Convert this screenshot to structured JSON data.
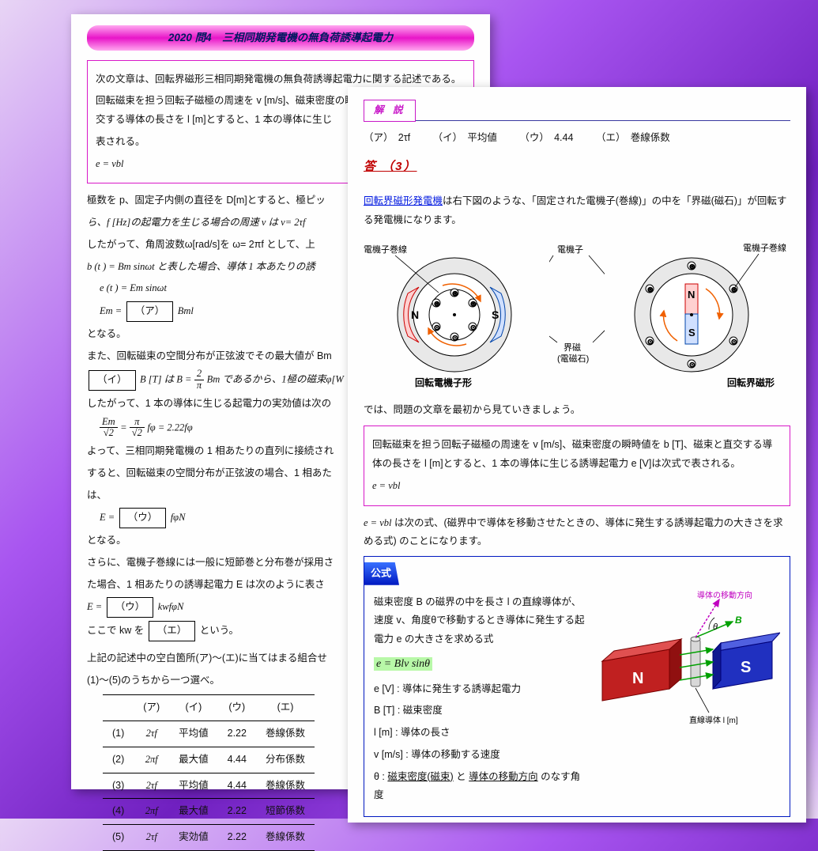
{
  "title": "2020 問4　三相同期発電機の無負荷誘導起電力",
  "p1": {
    "intro1": "次の文章は、回転界磁形三相同期発電機の無負荷誘導起電力に関する記述である。",
    "intro2": "回転磁束を担う回転子磁極の周速を v [m/s]、磁束密度の瞬時値を b [T]、磁束と直交する導体の長さを l [m]とすると、1 本の導体に生じ",
    "intro3": "表される。",
    "eq1": "e = vbl",
    "para2a": "極数を p、固定子内側の直径を D[m]とすると、極ピッ",
    "para2b": "ら、f [Hz]の起電力を生じる場合の周速 v は v= 2τf",
    "para2c": "したがって、角周波数ω[rad/s]を ω= 2πf として、上",
    "para2d": "b (t ) = Bm sinωt と表した場合、導体 1 本あたりの誘",
    "eq_et": "e (t ) = Em sinωt",
    "eq_Em_pre": "Em =",
    "eq_Em_blank": "（ア）",
    "eq_Em_post": "Bml",
    "tonaru": "となる。",
    "para3a": "また、回転磁束の空間分布が正弦波でその最大値が Bm",
    "blank_i": "（イ）",
    "para3b": "B [T] は B =",
    "frac_2pi_n": "2",
    "frac_2pi_d": "π",
    "para3c": "Bm であるから、1極の磁束φ[W",
    "para4": "したがって、1 本の導体に生じる起電力の実効値は次の",
    "frac_Em_n": "Em",
    "frac_Em_d": "√2",
    "frac_eq": " = ",
    "frac_pi_n": "π",
    "frac_pi_d": "√2",
    "para4b": "fφ = 2.22fφ",
    "para5a": "よって、三相同期発電機の 1 相あたりの直列に接続され",
    "para5b": "すると、回転磁束の空間分布が正弦波の場合、1 相あた",
    "para5c": "は、",
    "eq_E_pre": "E =",
    "eq_E_blank": "（ウ）",
    "eq_E_post": "fφN",
    "para6a": "さらに、電機子巻線には一般に短節巻と分布巻が採用さ",
    "para6b": "た場合、1 相あたりの誘導起電力 E は次のように表さ",
    "eq_E2_pre": "E =",
    "eq_E2_blank": "（ウ）",
    "eq_E2_post": "kwfφN",
    "para7a": "ここで kw を",
    "blank_e": "（エ）",
    "para7b": "という。",
    "para8": "上記の記述中の空白箇所(ア)～(エ)に当てはまる組合せ",
    "para9": "(1)～(5)のうちから一つ選べ。",
    "th_a": "(ア)",
    "th_i": "(イ)",
    "th_u": "(ウ)",
    "th_e": "(エ)",
    "rows": [
      {
        "n": "(1)",
        "a": "2τf",
        "i": "平均値",
        "u": "2.22",
        "e": "巻線係数"
      },
      {
        "n": "(2)",
        "a": "2πf",
        "i": "最大値",
        "u": "4.44",
        "e": "分布係数"
      },
      {
        "n": "(3)",
        "a": "2τf",
        "i": "平均値",
        "u": "4.44",
        "e": "巻線係数"
      },
      {
        "n": "(4)",
        "a": "2πf",
        "i": "最大値",
        "u": "2.22",
        "e": "短節係数"
      },
      {
        "n": "(5)",
        "a": "2τf",
        "i": "実効値",
        "u": "2.22",
        "e": "巻線係数"
      }
    ]
  },
  "p2": {
    "kaisetsu": "解 説",
    "ans_line_a": "（ア）　2τf",
    "ans_line_i": "（イ）　平均値",
    "ans_line_u": "（ウ）　4.44",
    "ans_line_e": "（エ）　巻線係数",
    "answer": "答 （3）",
    "link1": "回転界磁形発電機",
    "para1a": "は右下図のような、「固定された電機子(巻線)」の中を「界磁(磁石)」が回転する発電機になります。",
    "dlabels": {
      "denkishi_maki": "電機子巻線",
      "denkishi": "電機子",
      "kaiji": "界磁",
      "kaiji2": "(電磁石)",
      "red": "回転電機子形",
      "blue": "回転界磁形",
      "N": "N",
      "S": "S"
    },
    "para2": "では、問題の文章を最初から見ていきましょう。",
    "box1_l1": "回転磁束を担う回転子磁極の周速を v [m/s]、磁束密度の瞬時値を b [T]、磁束と直交する導体の長さを l [m]とすると、1 本の導体に生じる誘導起電力 e [V]は次式で表される。",
    "box1_l2": "e = vbl",
    "para3_a": "e = vbl",
    "para3_b": "は次の式、(磁界中で導体を移動させたときの、導体に発生する誘導起電力の大きさを求める式) のことになります。",
    "formula_hdr": "公式",
    "fml_l1": "磁束密度 B の磁界の中を長さ l の直線導体が、速度 v、角度θで移動するとき導体に発生する起電力 e の大きさを求める式",
    "fml_eq": "e = Blv sinθ",
    "fml_e": "e [V] : 導体に発生する誘導起電力",
    "fml_B": "B [T] : 磁束密度",
    "fml_l": "l [m] : 導体の長さ",
    "fml_v": "v [m/s] : 導体の移動する速度",
    "fml_th_a": "θ : ",
    "fml_th_b": "磁束密度(磁束)",
    "fml_th_c": " と ",
    "fml_th_d": "導体の移動方向",
    "fml_th_e": " のなす角度",
    "mag_labels": {
      "move": "導体の移動方向",
      "B": "B",
      "theta": "θ",
      "N": "N",
      "S": "S",
      "wire": "直線導体 l [m]"
    }
  }
}
